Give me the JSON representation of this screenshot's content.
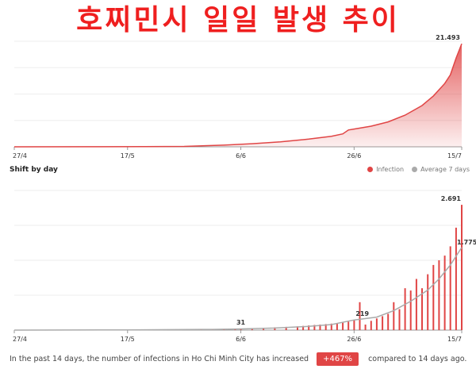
{
  "title": "호찌민시 일일 발생 추이",
  "colors": {
    "infection": "#e04545",
    "average": "#aaaaaa",
    "title": "#ef1f1f",
    "grid": "#eeeeee"
  },
  "chart_data": [
    {
      "type": "area",
      "title": "",
      "x_ticks": [
        "27/4",
        "17/5",
        "6/6",
        "26/6",
        "15/7"
      ],
      "x_range": [
        "2021-04-27",
        "2021-07-15"
      ],
      "ylim": [
        0,
        22000
      ],
      "grid": true,
      "series": [
        {
          "name": "",
          "x": [
            "2021-04-27",
            "2021-05-10",
            "2021-05-20",
            "2021-05-27",
            "2021-06-03",
            "2021-06-08",
            "2021-06-13",
            "2021-06-18",
            "2021-06-22",
            "2021-06-24",
            "2021-06-25",
            "2021-06-26",
            "2021-06-29",
            "2021-07-02",
            "2021-07-05",
            "2021-07-08",
            "2021-07-10",
            "2021-07-12",
            "2021-07-13",
            "2021-07-14",
            "2021-07-15"
          ],
          "values": [
            0,
            10,
            30,
            90,
            350,
            650,
            1050,
            1600,
            2200,
            2700,
            3500,
            3700,
            4300,
            5200,
            6600,
            8600,
            10600,
            13200,
            15000,
            18500,
            21493
          ]
        }
      ],
      "annotations": [
        {
          "x": "2021-07-15",
          "label": "21.493"
        }
      ]
    },
    {
      "type": "bar",
      "title": "Shift by day",
      "x_ticks": [
        "27/4",
        "17/5",
        "6/6",
        "26/6",
        "15/7"
      ],
      "x_range": [
        "2021-04-27",
        "2021-07-15"
      ],
      "ylim": [
        0,
        3000
      ],
      "grid": true,
      "legend_position": "top-right",
      "series": [
        {
          "name": "Infection",
          "x": [
            "2021-05-27",
            "2021-05-30",
            "2021-06-01",
            "2021-06-03",
            "2021-06-05",
            "2021-06-06",
            "2021-06-08",
            "2021-06-10",
            "2021-06-12",
            "2021-06-14",
            "2021-06-16",
            "2021-06-17",
            "2021-06-18",
            "2021-06-19",
            "2021-06-20",
            "2021-06-21",
            "2021-06-22",
            "2021-06-23",
            "2021-06-24",
            "2021-06-25",
            "2021-06-26",
            "2021-06-27",
            "2021-06-28",
            "2021-06-29",
            "2021-06-30",
            "2021-07-01",
            "2021-07-02",
            "2021-07-03",
            "2021-07-04",
            "2021-07-05",
            "2021-07-06",
            "2021-07-07",
            "2021-07-08",
            "2021-07-09",
            "2021-07-10",
            "2021-07-11",
            "2021-07-12",
            "2021-07-13",
            "2021-07-14",
            "2021-07-15"
          ],
          "values": [
            5,
            10,
            15,
            20,
            25,
            31,
            40,
            50,
            60,
            70,
            80,
            90,
            100,
            110,
            120,
            130,
            140,
            150,
            160,
            180,
            219,
            600,
            120,
            200,
            250,
            300,
            350,
            600,
            450,
            900,
            850,
            1100,
            900,
            1200,
            1400,
            1500,
            1600,
            1800,
            2200,
            2691
          ]
        },
        {
          "name": "Average 7 days",
          "x": [
            "2021-04-27",
            "2021-05-17",
            "2021-06-01",
            "2021-06-06",
            "2021-06-12",
            "2021-06-18",
            "2021-06-22",
            "2021-06-26",
            "2021-06-30",
            "2021-07-03",
            "2021-07-06",
            "2021-07-09",
            "2021-07-11",
            "2021-07-13",
            "2021-07-15"
          ],
          "values": [
            0,
            5,
            15,
            25,
            45,
            80,
            120,
            219,
            280,
            420,
            620,
            860,
            1100,
            1400,
            1775
          ]
        }
      ],
      "annotations": [
        {
          "x": "2021-06-06",
          "label": "31"
        },
        {
          "x": "2021-06-26",
          "label": "219"
        },
        {
          "x": "2021-07-15",
          "label": "2.691"
        },
        {
          "x": "2021-07-15",
          "label": "1.775"
        }
      ]
    }
  ],
  "footer": {
    "text_before": "In the past 14 days, the number of infections in Ho Chi Minh City has increased",
    "badge": "+467%",
    "text_after": "compared to 14 days ago."
  }
}
